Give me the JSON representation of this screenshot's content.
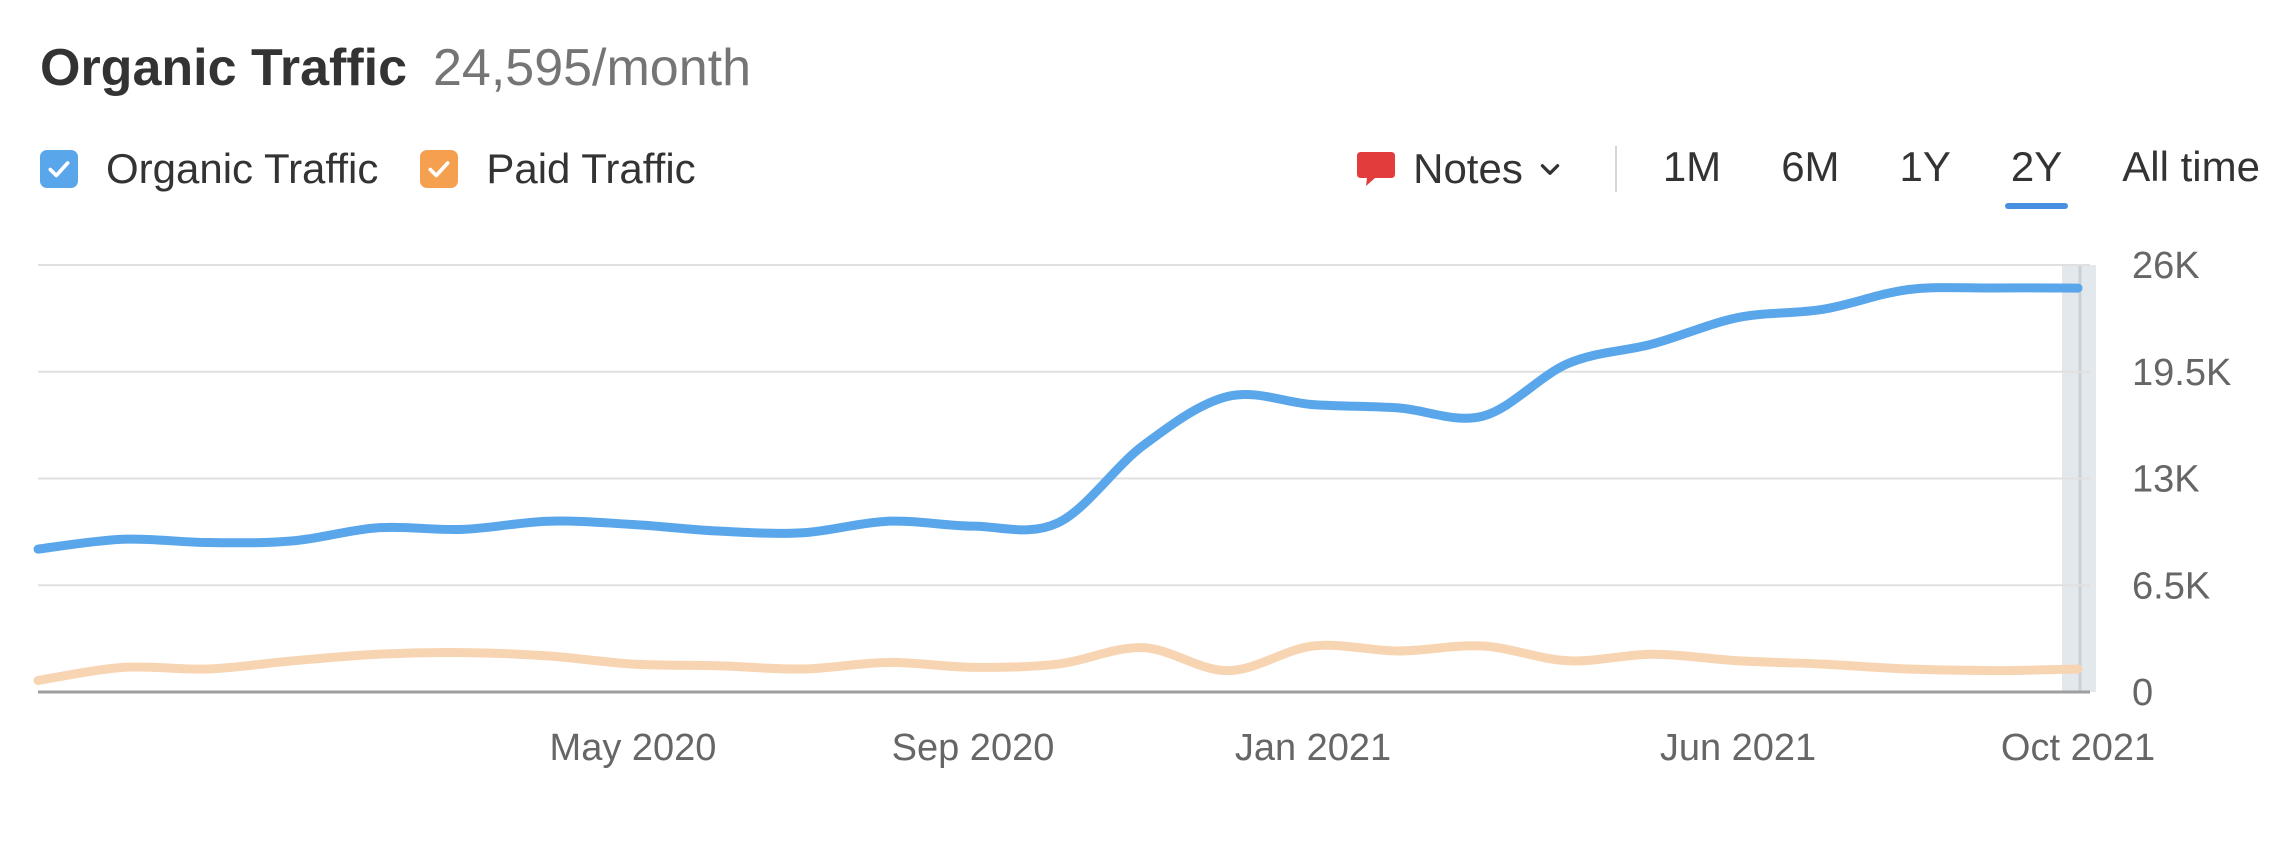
{
  "header": {
    "title": "Organic Traffic",
    "value": "24,595/month"
  },
  "legend": [
    {
      "label": "Organic Traffic",
      "color": "#5aa6ea",
      "checked": true,
      "icon": "check-icon"
    },
    {
      "label": "Paid Traffic",
      "color": "#f5a04f",
      "checked": true,
      "icon": "check-icon"
    }
  ],
  "controls": {
    "notes_label": "Notes",
    "notes_icon": "comment-icon",
    "notes_icon_color": "#e23c3c",
    "ranges": [
      "1M",
      "6M",
      "1Y",
      "2Y",
      "All time"
    ],
    "active_range": "2Y",
    "accent": "#4a90e2"
  },
  "chart_data": {
    "type": "line",
    "x": [
      "2019-10",
      "2019-11",
      "2019-12",
      "2020-01",
      "2020-02",
      "2020-03",
      "2020-04",
      "2020-05",
      "2020-06",
      "2020-07",
      "2020-08",
      "2020-09",
      "2020-10",
      "2020-11",
      "2020-12",
      "2021-01",
      "2021-02",
      "2021-03",
      "2021-04",
      "2021-05",
      "2021-06",
      "2021-07",
      "2021-08",
      "2021-09",
      "2021-10"
    ],
    "xlim": [
      "2019-10",
      "2021-10"
    ],
    "series": [
      {
        "name": "Organic Traffic",
        "color": "#5aa6ea",
        "values": [
          8700,
          9300,
          9100,
          9200,
          10000,
          9900,
          10400,
          10200,
          9800,
          9700,
          10400,
          10100,
          10300,
          15000,
          18000,
          17500,
          17300,
          16800,
          20000,
          21200,
          22800,
          23300,
          24500,
          24600,
          24595
        ]
      },
      {
        "name": "Paid Traffic",
        "color": "#f8d5b2",
        "values": [
          700,
          1500,
          1400,
          1900,
          2300,
          2400,
          2200,
          1700,
          1600,
          1400,
          1800,
          1500,
          1700,
          2700,
          1300,
          2800,
          2500,
          2800,
          1900,
          2300,
          1900,
          1700,
          1400,
          1300,
          1400
        ]
      }
    ],
    "y_ticks": [
      "26K",
      "19.5K",
      "13K",
      "6.5K",
      "0"
    ],
    "x_ticks": [
      {
        "label": "May 2020",
        "x": "2020-05"
      },
      {
        "label": "Sep 2020",
        "x": "2020-09"
      },
      {
        "label": "Jan 2021",
        "x": "2021-01"
      },
      {
        "label": "Jun 2021",
        "x": "2021-06"
      },
      {
        "label": "Oct 2021",
        "x": "2021-10"
      }
    ],
    "ylim": [
      0,
      26000
    ],
    "grid": true,
    "hover_x": "2021-10",
    "xlabel": "",
    "ylabel": ""
  }
}
